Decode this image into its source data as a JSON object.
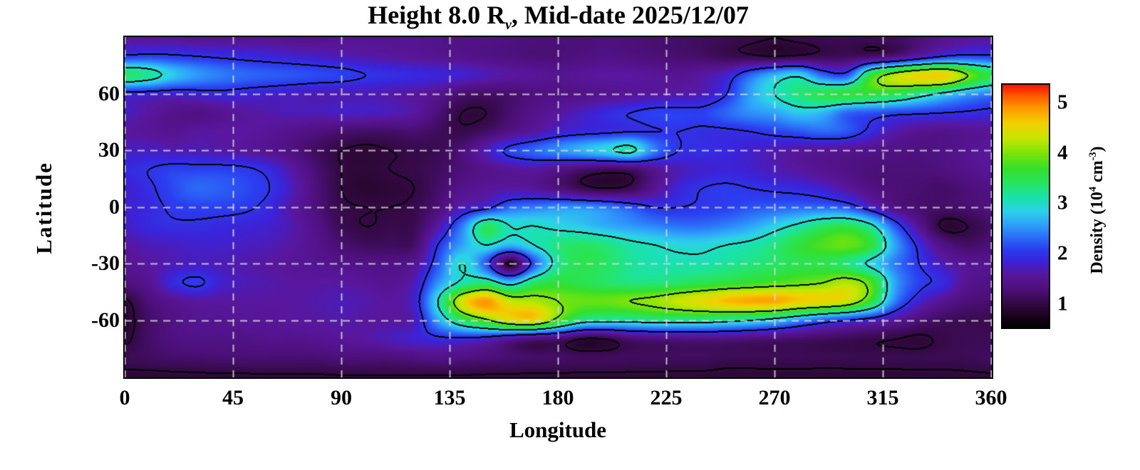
{
  "title": {
    "prefix": "Height 8.0 R",
    "subscript": "v",
    "suffix": ", Mid-date 2025/12/07"
  },
  "axes": {
    "x": {
      "label": "Longitude",
      "ticks": [
        0,
        45,
        90,
        135,
        180,
        225,
        270,
        315,
        360
      ],
      "range": [
        0,
        360
      ]
    },
    "y": {
      "label": "Latitude",
      "ticks": [
        60,
        30,
        0,
        -30,
        -60
      ],
      "range": [
        -90,
        90
      ]
    },
    "grid_lon": [
      0,
      45,
      90,
      135,
      180,
      225,
      270,
      315,
      360
    ],
    "grid_lat": [
      60,
      30,
      0,
      -30,
      -60
    ]
  },
  "colorbar": {
    "ticks": [
      1,
      2,
      3,
      4,
      5
    ],
    "range": [
      0.55,
      5.35
    ],
    "label_parts": {
      "p1": "Density (10",
      "sup1": "4",
      "p2": " cm",
      "sup2": "-3",
      "p3": ")"
    },
    "stops": [
      [
        0.55,
        "#000000"
      ],
      [
        0.95,
        "#2e0838"
      ],
      [
        1.3,
        "#4c1079"
      ],
      [
        1.6,
        "#58179e"
      ],
      [
        1.85,
        "#3b23d9"
      ],
      [
        2.1,
        "#2a3ff0"
      ],
      [
        2.35,
        "#2c72f7"
      ],
      [
        2.6,
        "#2fa4fa"
      ],
      [
        2.85,
        "#2dd2e9"
      ],
      [
        3.1,
        "#19e2b0"
      ],
      [
        3.4,
        "#27e563"
      ],
      [
        3.7,
        "#35df2a"
      ],
      [
        4.0,
        "#7ee40a"
      ],
      [
        4.3,
        "#c9e600"
      ],
      [
        4.6,
        "#f2d000"
      ],
      [
        4.9,
        "#ff9800"
      ],
      [
        5.15,
        "#ff5500"
      ],
      [
        5.35,
        "#ff1400"
      ]
    ]
  },
  "style_colors": {
    "contour": "#000000",
    "grid_dash": "#d8d8d8",
    "frame": "#000000",
    "background": "#ffffff"
  },
  "chart_data": {
    "type": "heatmap",
    "title": "Height 8.0 Rv, Mid-date 2025/12/07",
    "xlabel": "Longitude",
    "ylabel": "Latitude",
    "units": "10^4 cm^-3",
    "x_range": [
      0,
      360
    ],
    "y_range": [
      -90,
      90
    ],
    "lon_step": 10,
    "lat_step": 10,
    "row_order": "lat 90 down to -90",
    "contour_levels": [
      1,
      2,
      3,
      4,
      5
    ],
    "value_range": [
      0.55,
      5.35
    ],
    "grid": [
      [
        1.55,
        1.55,
        1.55,
        1.5,
        1.5,
        1.5,
        1.5,
        1.45,
        1.45,
        1.5,
        1.5,
        1.5,
        1.5,
        1.45,
        1.4,
        1.4,
        1.35,
        1.3,
        1.3,
        1.3,
        1.35,
        1.3,
        1.25,
        1.2,
        1.15,
        1.1,
        1.05,
        1.0,
        1.05,
        1.1,
        1.1,
        1.1,
        1.15,
        1.3,
        1.45,
        1.55,
        1.6
      ],
      [
        2.05,
        2.1,
        2.05,
        2.0,
        1.95,
        1.9,
        1.85,
        1.8,
        1.75,
        1.7,
        1.65,
        1.6,
        1.55,
        1.5,
        1.45,
        1.4,
        1.35,
        1.3,
        1.3,
        1.35,
        1.4,
        1.35,
        1.3,
        1.25,
        1.2,
        1.1,
        1.05,
        1.0,
        1.05,
        1.1,
        1.15,
        1.2,
        1.35,
        1.7,
        2.0,
        2.1,
        2.05
      ],
      [
        3.4,
        3.2,
        2.8,
        2.55,
        2.4,
        2.3,
        2.25,
        2.2,
        2.15,
        2.1,
        2.0,
        1.95,
        1.9,
        1.85,
        1.8,
        1.7,
        1.6,
        1.55,
        1.5,
        1.55,
        1.6,
        1.6,
        1.55,
        1.5,
        1.6,
        1.8,
        2.3,
        2.7,
        2.9,
        2.3,
        2.2,
        3.6,
        4.2,
        4.5,
        4.6,
        4.0,
        3.5
      ],
      [
        1.9,
        1.85,
        1.8,
        1.85,
        1.9,
        1.85,
        1.8,
        1.75,
        1.7,
        1.7,
        1.7,
        1.65,
        1.6,
        1.5,
        1.25,
        1.2,
        1.25,
        1.35,
        1.4,
        1.45,
        1.5,
        1.55,
        1.6,
        1.65,
        1.7,
        2.0,
        2.6,
        3.0,
        3.3,
        3.5,
        3.6,
        3.6,
        3.5,
        3.2,
        2.9,
        2.6,
        2.4
      ],
      [
        1.75,
        1.6,
        1.45,
        1.4,
        1.5,
        1.6,
        1.65,
        1.7,
        1.7,
        1.75,
        1.75,
        1.7,
        1.6,
        1.3,
        1.0,
        1.0,
        1.25,
        1.45,
        1.6,
        1.75,
        1.9,
        2.0,
        2.1,
        2.1,
        2.1,
        2.3,
        2.5,
        2.6,
        2.8,
        2.7,
        2.3,
        2.2,
        2.1,
        2.05,
        2.0,
        1.95,
        1.9
      ],
      [
        1.6,
        1.55,
        1.5,
        1.6,
        1.6,
        1.6,
        1.55,
        1.45,
        1.35,
        1.25,
        1.2,
        1.2,
        1.25,
        1.15,
        1.05,
        1.2,
        1.4,
        1.6,
        1.8,
        1.9,
        1.95,
        2.0,
        2.0,
        2.0,
        1.95,
        1.95,
        2.0,
        2.1,
        2.2,
        2.3,
        2.2,
        1.9,
        1.65,
        1.5,
        1.45,
        1.5,
        1.55
      ],
      [
        1.75,
        1.75,
        1.7,
        1.7,
        1.65,
        1.6,
        1.5,
        1.35,
        1.15,
        1.0,
        0.95,
        1.0,
        1.05,
        1.1,
        1.3,
        1.7,
        2.1,
        2.3,
        2.5,
        2.7,
        2.9,
        3.1,
        2.4,
        2.0,
        1.95,
        1.9,
        1.8,
        1.7,
        1.6,
        1.55,
        1.5,
        1.45,
        1.4,
        1.35,
        1.4,
        1.5,
        1.6
      ],
      [
        1.9,
        2.0,
        2.1,
        2.1,
        2.1,
        2.05,
        1.9,
        1.6,
        1.25,
        1.0,
        0.95,
        1.0,
        1.05,
        1.15,
        1.3,
        1.45,
        1.55,
        1.6,
        1.45,
        1.25,
        1.15,
        1.2,
        1.5,
        1.7,
        1.8,
        1.85,
        1.8,
        1.7,
        1.6,
        1.5,
        1.4,
        1.3,
        1.3,
        1.3,
        1.35,
        1.45,
        1.55
      ],
      [
        1.8,
        1.95,
        2.15,
        2.3,
        2.25,
        2.15,
        2.0,
        1.7,
        1.3,
        1.0,
        0.9,
        0.95,
        1.0,
        1.2,
        1.45,
        1.55,
        1.6,
        1.55,
        1.35,
        1.1,
        1.0,
        1.1,
        1.5,
        1.85,
        2.0,
        2.05,
        2.0,
        1.95,
        1.9,
        1.8,
        1.6,
        1.4,
        1.3,
        1.25,
        1.2,
        1.3,
        1.4
      ],
      [
        1.8,
        1.9,
        2.05,
        2.1,
        2.1,
        2.05,
        1.9,
        1.6,
        1.3,
        1.05,
        1.0,
        1.0,
        1.05,
        1.3,
        1.7,
        1.9,
        2.3,
        2.4,
        2.5,
        2.5,
        2.4,
        2.2,
        2.0,
        2.0,
        2.05,
        2.1,
        2.2,
        2.25,
        2.3,
        2.3,
        2.2,
        1.8,
        1.4,
        1.25,
        1.2,
        1.25,
        1.35
      ],
      [
        1.75,
        1.9,
        1.95,
        1.95,
        1.9,
        1.85,
        1.8,
        1.65,
        1.4,
        1.1,
        1.0,
        1.05,
        1.1,
        1.6,
        2.4,
        3.4,
        3.0,
        3.0,
        2.9,
        2.8,
        2.65,
        2.55,
        2.45,
        2.35,
        2.35,
        2.45,
        2.6,
        2.85,
        3.1,
        3.4,
        3.5,
        3.1,
        2.2,
        1.5,
        0.95,
        1.0,
        1.2
      ],
      [
        1.6,
        1.7,
        1.75,
        1.8,
        1.8,
        1.75,
        1.7,
        1.6,
        1.45,
        1.25,
        1.15,
        1.15,
        1.2,
        2.0,
        2.6,
        3.0,
        2.7,
        3.0,
        3.3,
        3.4,
        3.3,
        3.1,
        3.0,
        2.9,
        2.9,
        3.0,
        3.1,
        3.3,
        3.6,
        3.8,
        3.9,
        3.6,
        2.6,
        1.9,
        1.4,
        1.2,
        1.3
      ],
      [
        1.5,
        1.6,
        1.7,
        1.75,
        1.7,
        1.65,
        1.6,
        1.55,
        1.5,
        1.45,
        1.4,
        1.4,
        1.5,
        2.2,
        3.0,
        2.2,
        0.95,
        2.2,
        3.2,
        3.5,
        3.4,
        3.2,
        3.1,
        3.1,
        3.1,
        3.2,
        3.3,
        3.4,
        3.5,
        3.5,
        3.3,
        2.9,
        2.4,
        2.0,
        1.7,
        1.5,
        1.5
      ],
      [
        1.35,
        1.5,
        1.9,
        2.05,
        1.8,
        1.7,
        1.65,
        1.6,
        1.6,
        1.6,
        1.55,
        1.5,
        1.7,
        2.5,
        3.1,
        3.3,
        2.8,
        3.4,
        3.6,
        3.5,
        3.4,
        3.3,
        3.3,
        3.4,
        3.5,
        3.6,
        3.7,
        3.8,
        3.9,
        4.0,
        4.2,
        3.8,
        2.6,
        2.1,
        1.9,
        1.5,
        1.4
      ],
      [
        0.95,
        1.3,
        1.5,
        1.6,
        1.6,
        1.6,
        1.6,
        1.6,
        1.65,
        1.7,
        1.65,
        1.6,
        1.8,
        3.0,
        4.4,
        4.9,
        4.3,
        4.2,
        4.0,
        3.9,
        3.9,
        4.0,
        4.1,
        4.3,
        4.5,
        4.7,
        4.8,
        4.8,
        4.6,
        4.5,
        4.3,
        3.6,
        2.4,
        1.8,
        1.5,
        1.3,
        1.25
      ],
      [
        0.9,
        1.2,
        1.4,
        1.5,
        1.5,
        1.55,
        1.55,
        1.6,
        1.6,
        1.65,
        1.6,
        1.6,
        1.7,
        2.6,
        3.4,
        3.9,
        4.4,
        4.5,
        3.8,
        3.2,
        3.1,
        3.1,
        3.2,
        3.2,
        3.2,
        3.1,
        3.0,
        2.8,
        2.5,
        2.2,
        2.0,
        1.8,
        1.55,
        1.3,
        1.15,
        1.1,
        1.1
      ],
      [
        0.95,
        1.2,
        1.35,
        1.4,
        1.4,
        1.4,
        1.45,
        1.45,
        1.5,
        1.55,
        1.6,
        1.7,
        1.8,
        1.9,
        1.9,
        1.8,
        1.5,
        1.3,
        1.25,
        0.97,
        1.0,
        1.25,
        1.3,
        1.35,
        1.35,
        1.35,
        1.3,
        1.25,
        1.2,
        1.15,
        1.1,
        1.05,
        1.0,
        0.95,
        1.05,
        1.1,
        1.1
      ],
      [
        1.1,
        1.15,
        1.2,
        1.22,
        1.25,
        1.25,
        1.25,
        1.25,
        1.25,
        1.3,
        1.3,
        1.3,
        1.35,
        1.4,
        1.35,
        1.3,
        1.25,
        1.2,
        1.2,
        1.15,
        1.15,
        1.15,
        1.15,
        1.15,
        1.15,
        1.1,
        1.1,
        1.1,
        1.1,
        1.08,
        1.08,
        1.08,
        1.08,
        1.08,
        1.08,
        1.1,
        1.15
      ],
      [
        0.93,
        0.93,
        0.94,
        0.95,
        0.96,
        0.96,
        0.97,
        0.97,
        0.97,
        0.98,
        0.98,
        0.98,
        0.98,
        0.98,
        0.98,
        0.97,
        0.97,
        0.96,
        0.96,
        0.96,
        0.96,
        0.96,
        0.96,
        0.95,
        0.95,
        0.94,
        0.94,
        0.94,
        0.94,
        0.94,
        0.94,
        0.94,
        0.94,
        0.94,
        0.95,
        0.96,
        0.97
      ]
    ]
  }
}
